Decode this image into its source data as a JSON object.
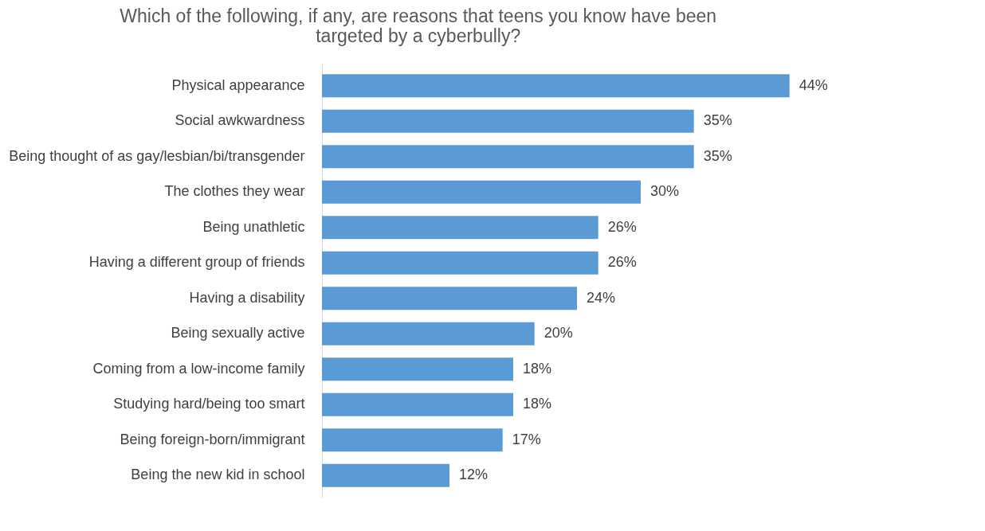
{
  "chart_data": {
    "type": "bar",
    "orientation": "horizontal",
    "title": "Which of the following, if any, are reasons that teens you know have been targeted by a cyberbully?",
    "categories": [
      "Physical appearance",
      "Social awkwardness",
      "Being thought of as gay/lesbian/bi/transgender",
      "The clothes they wear",
      "Being unathletic",
      "Having a different group of friends",
      "Having a disability",
      "Being sexually active",
      "Coming from a low-income family",
      "Studying hard/being too smart",
      "Being foreign-born/immigrant",
      "Being the new kid in school"
    ],
    "values": [
      44,
      35,
      35,
      30,
      26,
      26,
      24,
      20,
      18,
      18,
      17,
      12
    ],
    "value_labels": [
      "44%",
      "35%",
      "35%",
      "30%",
      "26%",
      "26%",
      "24%",
      "20%",
      "18%",
      "18%",
      "17%",
      "12%"
    ],
    "color": "#5b9bd5"
  }
}
